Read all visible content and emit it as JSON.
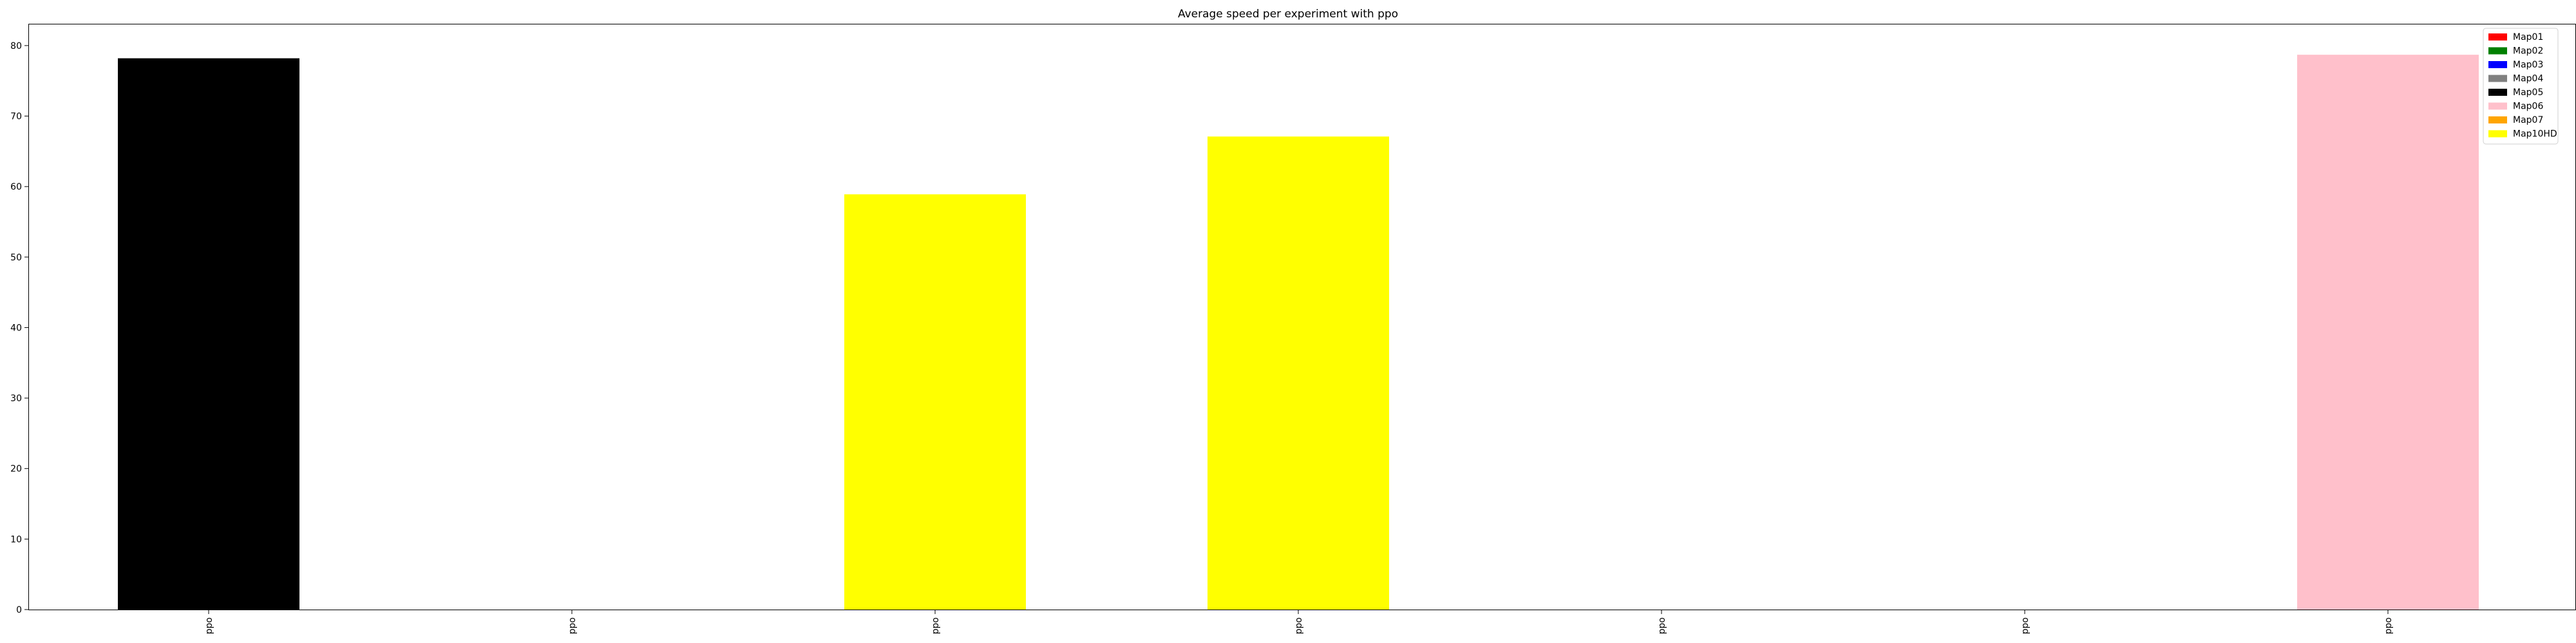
{
  "chart_data": {
    "type": "bar",
    "title": "Average speed per experiment with ppo",
    "xlabel": "",
    "ylabel": "",
    "ylim": [
      0,
      83
    ],
    "yticks": [
      0,
      10,
      20,
      30,
      40,
      50,
      60,
      70,
      80
    ],
    "categories": [
      "ppo",
      "ppo",
      "ppo",
      "ppo",
      "ppo",
      "ppo",
      "ppo"
    ],
    "bars": [
      {
        "series": "Map05",
        "value": 78.2
      },
      {
        "series": "Map01",
        "value": 0
      },
      {
        "series": "Map10HD",
        "value": 58.9
      },
      {
        "series": "Map10HD",
        "value": 67.1
      },
      {
        "series": "Map01",
        "value": 0
      },
      {
        "series": "Map01",
        "value": 0
      },
      {
        "series": "Map06",
        "value": 78.7
      }
    ],
    "grid": false,
    "legend_position": "top-right",
    "legend": [
      {
        "name": "Map01",
        "color": "#ff0000"
      },
      {
        "name": "Map02",
        "color": "#008000"
      },
      {
        "name": "Map03",
        "color": "#0000ff"
      },
      {
        "name": "Map04",
        "color": "#808080"
      },
      {
        "name": "Map05",
        "color": "#000000"
      },
      {
        "name": "Map06",
        "color": "#ffc0cb"
      },
      {
        "name": "Map07",
        "color": "#ffa500"
      },
      {
        "name": "Map10HD",
        "color": "#ffff00"
      }
    ]
  }
}
